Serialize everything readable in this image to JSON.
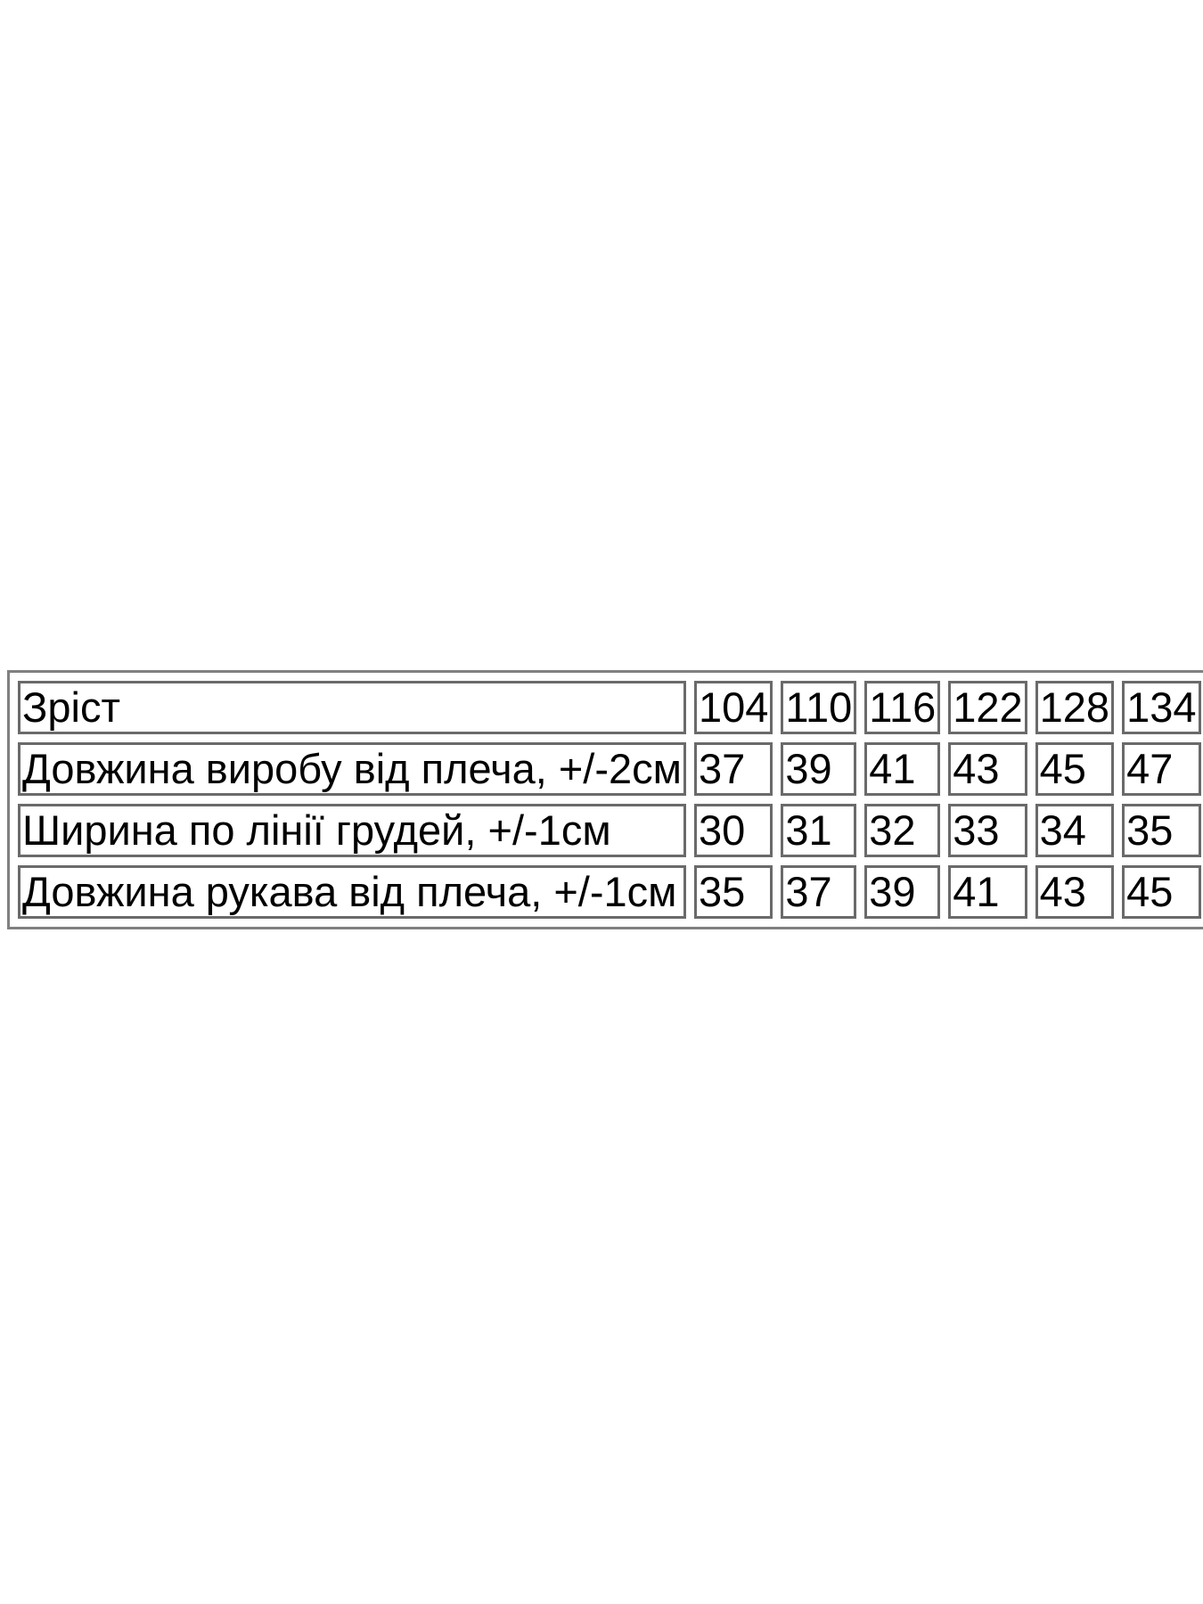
{
  "page": {
    "background_color": "#ffffff"
  },
  "size_table": {
    "border_color": "#6a6a6a",
    "outer_border_color": "#808080",
    "text_color": "#000000",
    "header": {
      "label": "Зріст",
      "values": [
        "104",
        "110",
        "116",
        "122",
        "128",
        "134"
      ]
    },
    "rows": [
      {
        "label": "Довжина виробу від плеча, +/-2см",
        "values": [
          "37",
          "39",
          "41",
          "43",
          "45",
          "47"
        ]
      },
      {
        "label": "Ширина по лінії грудей, +/-1см",
        "values": [
          "30",
          "31",
          "32",
          "33",
          "34",
          "35"
        ]
      },
      {
        "label": "Довжина рукава від плеча, +/-1см",
        "values": [
          "35",
          "37",
          "39",
          "41",
          "43",
          "45"
        ]
      }
    ]
  },
  "chart_data": {
    "type": "table",
    "title": "",
    "columns": [
      "Зріст",
      "104",
      "110",
      "116",
      "122",
      "128",
      "134"
    ],
    "rows": [
      [
        "Довжина виробу від плеча, +/-2см",
        37,
        39,
        41,
        43,
        45,
        47
      ],
      [
        "Ширина по лінії грудей, +/-1см",
        30,
        31,
        32,
        33,
        34,
        35
      ],
      [
        "Довжина рукава від плеча, +/-1см",
        35,
        37,
        39,
        41,
        43,
        45
      ]
    ]
  }
}
